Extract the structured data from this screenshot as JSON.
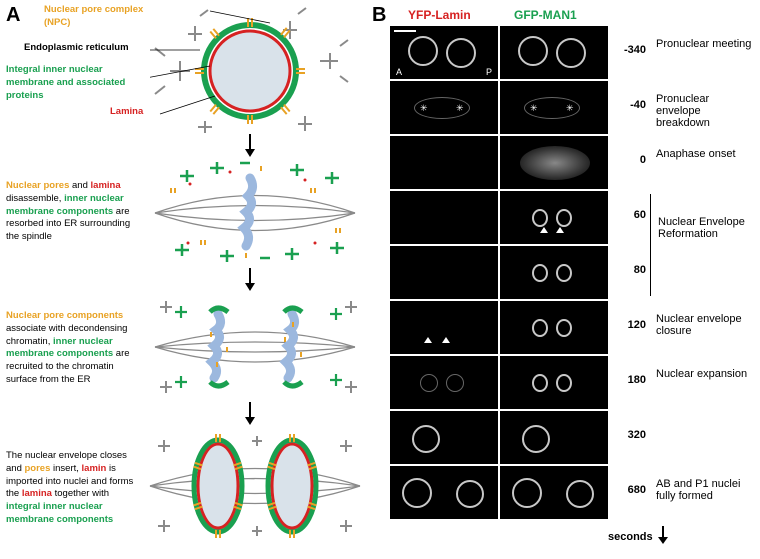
{
  "panelA": {
    "label": "A",
    "legend": {
      "npc": {
        "text": "Nuclear pore complex (NPC)",
        "color": "#e8a224"
      },
      "er": {
        "text": "Endoplasmic reticulum",
        "color": "#000000"
      },
      "inm": {
        "text": "Integral inner nuclear membrane and associated proteins",
        "color": "#1aa050"
      },
      "lamina": {
        "text": "Lamina",
        "color": "#d62222"
      }
    },
    "stage2": {
      "parts": [
        {
          "text": "Nuclear pores",
          "color": "#e8a224"
        },
        {
          "text": " and ",
          "color": "#000000"
        },
        {
          "text": "lamina",
          "color": "#d62222"
        },
        {
          "text": " disassemble, ",
          "color": "#000000"
        },
        {
          "text": "inner nuclear membrane components",
          "color": "#1aa050"
        },
        {
          "text": " are resorbed into ER surrounding the spindle",
          "color": "#000000"
        }
      ]
    },
    "stage3": {
      "parts": [
        {
          "text": "Nuclear pore components",
          "color": "#e8a224"
        },
        {
          "text": " associate with decondensing chromatin, ",
          "color": "#000000"
        },
        {
          "text": "inner nuclear membrane components",
          "color": "#1aa050"
        },
        {
          "text": " are recruited to the chromatin surface from the ER",
          "color": "#000000"
        }
      ]
    },
    "stage4": {
      "parts": [
        {
          "text": "The nuclear envelope closes and ",
          "color": "#000000"
        },
        {
          "text": "pores",
          "color": "#e8a224"
        },
        {
          "text": " insert,  ",
          "color": "#000000"
        },
        {
          "text": "lamin",
          "color": "#d62222"
        },
        {
          "text": " is imported into nuclei and forms the ",
          "color": "#000000"
        },
        {
          "text": "lamina",
          "color": "#d62222"
        },
        {
          "text": " together with ",
          "color": "#000000"
        },
        {
          "text": "integral inner nuclear membrane components",
          "color": "#1aa050"
        }
      ]
    },
    "colors": {
      "npc": "#e8a224",
      "er": "#8a8a8a",
      "inm": "#1aa050",
      "lamina": "#d62222",
      "nucleoplasm": "#d9e2ea",
      "chromatin": "#9cb8de",
      "arrow": "#000000"
    }
  },
  "panelB": {
    "label": "B",
    "channels": {
      "yfp": {
        "text": "YFP-Lamin",
        "color": "#d62222"
      },
      "gfp": {
        "text": "GFP-MAN1",
        "color": "#1aa050"
      }
    },
    "rows": [
      {
        "time": "-340",
        "stage": "Pronuclear meeting",
        "yfp": "two-rings",
        "gfp": "two-rings",
        "scalebar": true,
        "ap": true
      },
      {
        "time": "-40",
        "stage": "Pronuclear envelope breakdown",
        "yfp": "faint-holes",
        "gfp": "faint-holes",
        "asterisks": true
      },
      {
        "time": "0",
        "stage": "Anaphase onset",
        "yfp": "empty",
        "gfp": "diffuse"
      },
      {
        "time": "60",
        "stage": "",
        "yfp": "empty",
        "gfp": "two-small",
        "tri_gfp": true
      },
      {
        "time": "80",
        "stage": "",
        "yfp": "empty",
        "gfp": "two-small"
      },
      {
        "time": "120",
        "stage": "Nuclear envelope closure",
        "yfp": "tri-faint",
        "gfp": "two-small",
        "tri_yfp": true
      },
      {
        "time": "180",
        "stage": "Nuclear expansion",
        "yfp": "two-faint",
        "gfp": "two-small"
      },
      {
        "time": "320",
        "stage": "",
        "yfp": "one-ring",
        "gfp": "one-ring"
      },
      {
        "time": "680",
        "stage": "AB and P1 nuclei fully formed",
        "yfp": "two-rings-sep",
        "gfp": "two-rings-sep"
      }
    ],
    "bracketReform": "Nuclear Envelope Reformation",
    "secondsLabel": "seconds",
    "colors": {
      "bg": "#000000",
      "ring_bright": "#c8c8c8",
      "ring_dim": "#6a6a6a",
      "diffuse": "#555555"
    }
  }
}
